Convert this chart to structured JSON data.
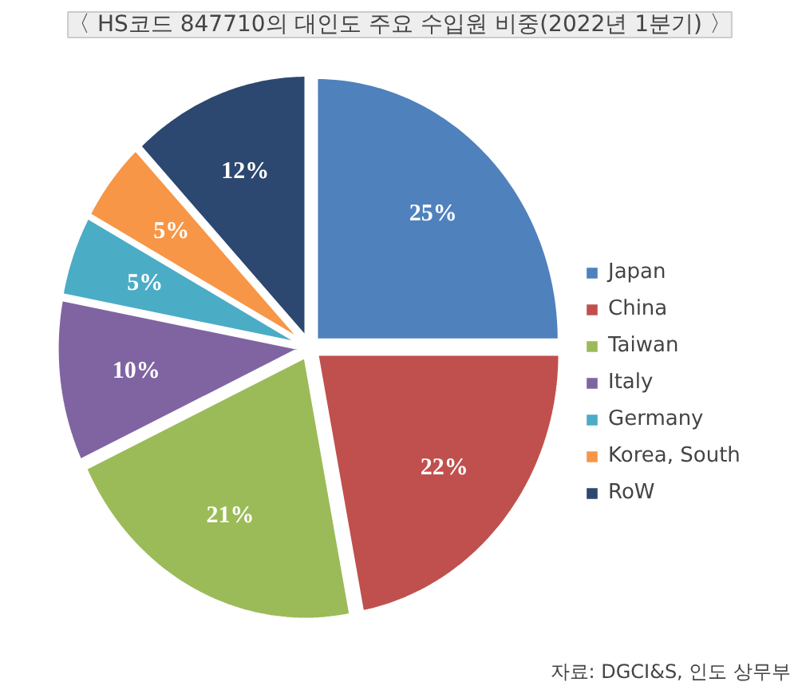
{
  "chart_data": {
    "type": "pie",
    "title": "〈 HS코드 847710의 대인도 주요 수입원 비중(2022년 1분기) 〉",
    "categories": [
      "Japan",
      "China",
      "Taiwan",
      "Italy",
      "Germany",
      "Korea, South",
      "RoW"
    ],
    "values": [
      25,
      22,
      21,
      10,
      5,
      5,
      12
    ],
    "colors": [
      "#4f81bd",
      "#c0504d",
      "#9bbb59",
      "#8064a2",
      "#4bacc6",
      "#f79646",
      "#2c4770"
    ],
    "value_labels": [
      "25%",
      "22%",
      "21%",
      "10%",
      "5%",
      "5%",
      "12%"
    ],
    "legend": "right",
    "annotations": [
      "자료: DGCI&S, 인도 상무부"
    ]
  }
}
